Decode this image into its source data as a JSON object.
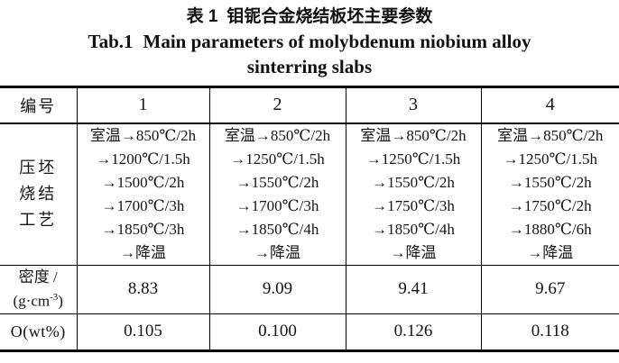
{
  "colors": {
    "background": "#ffffff",
    "text": "#141414",
    "rule": "#000000"
  },
  "caption": {
    "zh_label": "表 1",
    "zh_title": "钼铌合金烧结板坯主要参数",
    "en_label": "Tab.1",
    "en_title_line1": "Main parameters of molybdenum niobium alloy",
    "en_title_line2": "sinterring slabs"
  },
  "table": {
    "header": {
      "row_label": "编号",
      "columns": [
        "1",
        "2",
        "3",
        "4"
      ]
    },
    "rows": {
      "process": {
        "label_lines": [
          "压坯",
          "烧结",
          "工艺"
        ],
        "cells": [
          [
            "室温→850℃/2h",
            "→1200℃/1.5h",
            "→1500℃/2h",
            "→1700℃/3h",
            "→1850℃/3h",
            "→降温"
          ],
          [
            "室温→850℃/2h",
            "→1250℃/1.5h",
            "→1550℃/2h",
            "→1700℃/3h",
            "→1850℃/4h",
            "→降温"
          ],
          [
            "室温→850℃/2h",
            "→1250℃/1.5h",
            "→1550℃/2h",
            "→1750℃/3h",
            "→1850℃/4h",
            "→降温"
          ],
          [
            "室温→850℃/2h",
            "→1250℃/1.5h",
            "→1550℃/2h",
            "→1750℃/2h",
            "→1880℃/6h",
            "→降温"
          ]
        ]
      },
      "density": {
        "label_line1": "密度 /",
        "unit_prefix": "(g·cm",
        "unit_superscript": "-3",
        "unit_suffix": ")",
        "values": [
          "8.83",
          "9.09",
          "9.41",
          "9.67"
        ]
      },
      "oxygen": {
        "label": "O(wt%)",
        "values": [
          "0.105",
          "0.100",
          "0.126",
          "0.118"
        ]
      }
    }
  }
}
